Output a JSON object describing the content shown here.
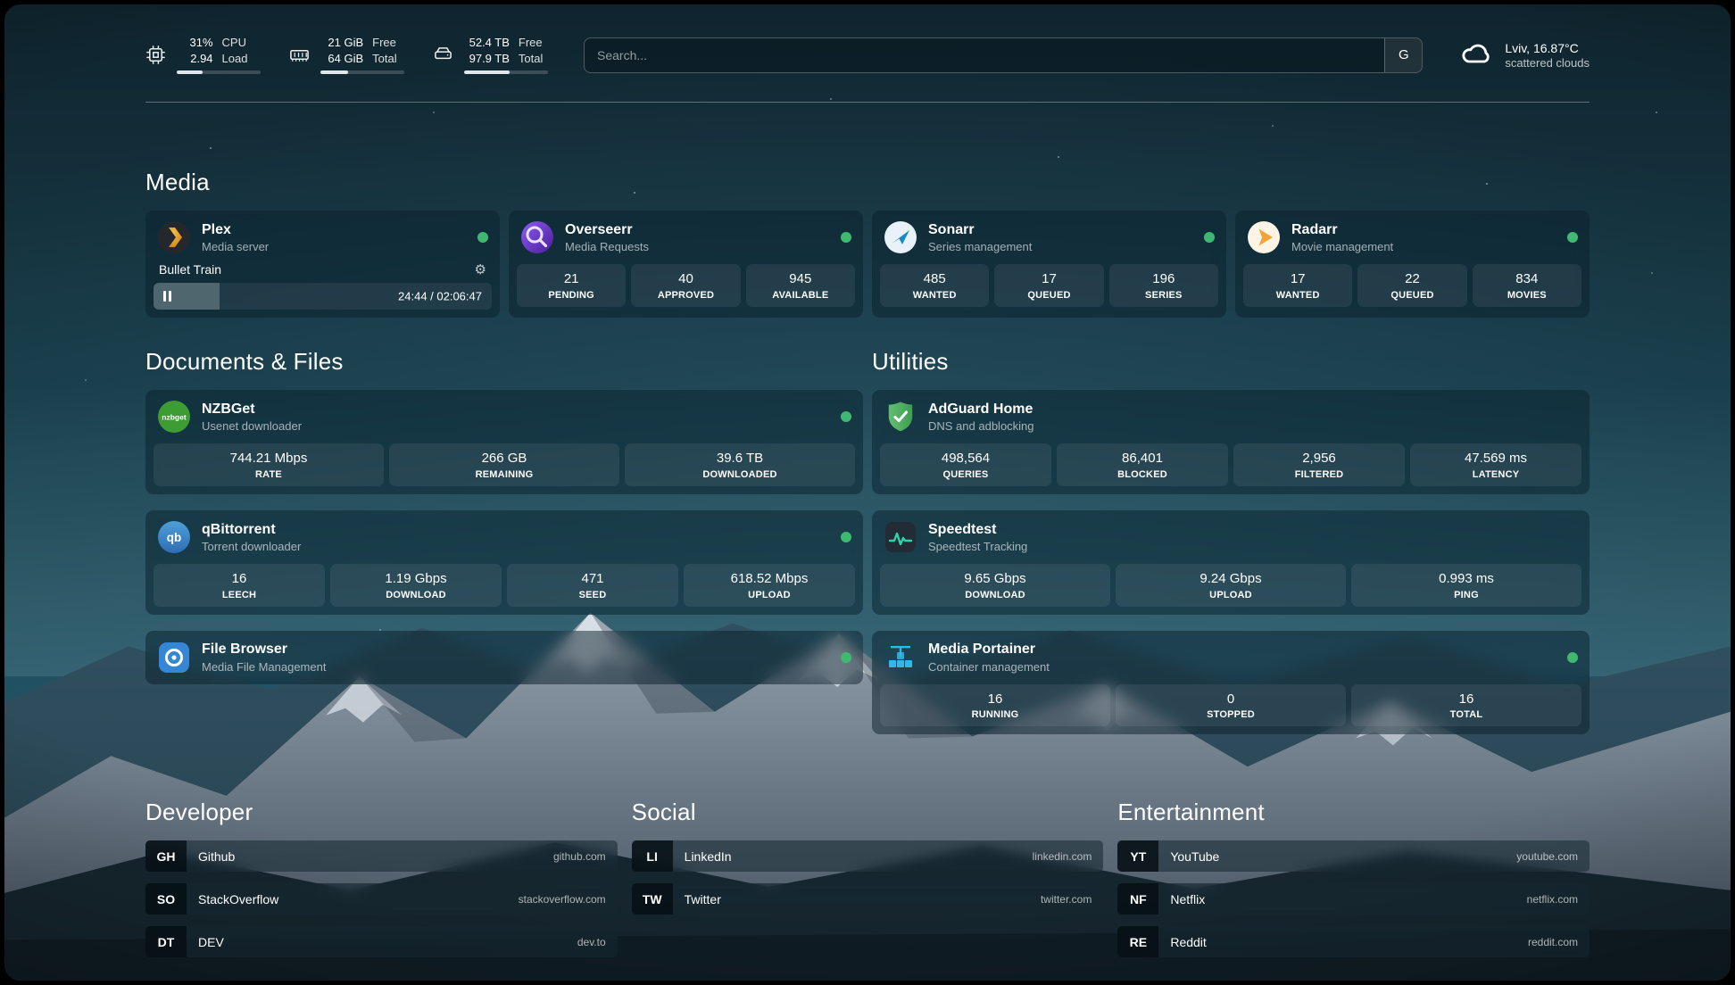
{
  "header": {
    "cpu": {
      "value_top": "31%",
      "value_bottom": "2.94",
      "label_top": "CPU",
      "label_bottom": "Load",
      "bar_percent": 31
    },
    "memory": {
      "value_top": "21 GiB",
      "value_bottom": "64 GiB",
      "label_top": "Free",
      "label_bottom": "Total",
      "bar_percent": 33
    },
    "disk": {
      "value_top": "52.4 TB",
      "value_bottom": "97.9 TB",
      "label_top": "Free",
      "label_bottom": "Total",
      "bar_percent": 54
    },
    "search": {
      "placeholder": "Search...",
      "provider_label": "G"
    },
    "weather": {
      "location": "Lviv, 16.87°C",
      "condition": "scattered clouds"
    }
  },
  "media": {
    "title": "Media",
    "plex": {
      "name": "Plex",
      "description": "Media server",
      "now_playing": "Bullet Train",
      "time": "24:44 / 02:06:47",
      "progress_percent": 19.5
    },
    "overseerr": {
      "name": "Overseerr",
      "description": "Media Requests",
      "stats": [
        {
          "value": "21",
          "label": "PENDING"
        },
        {
          "value": "40",
          "label": "APPROVED"
        },
        {
          "value": "945",
          "label": "AVAILABLE"
        }
      ]
    },
    "sonarr": {
      "name": "Sonarr",
      "description": "Series management",
      "stats": [
        {
          "value": "485",
          "label": "WANTED"
        },
        {
          "value": "17",
          "label": "QUEUED"
        },
        {
          "value": "196",
          "label": "SERIES"
        }
      ]
    },
    "radarr": {
      "name": "Radarr",
      "description": "Movie management",
      "stats": [
        {
          "value": "17",
          "label": "WANTED"
        },
        {
          "value": "22",
          "label": "QUEUED"
        },
        {
          "value": "834",
          "label": "MOVIES"
        }
      ]
    }
  },
  "documents": {
    "title": "Documents & Files",
    "nzbget": {
      "name": "NZBGet",
      "description": "Usenet downloader",
      "icon_text": "nzbget",
      "stats": [
        {
          "value": "744.21 Mbps",
          "label": "RATE"
        },
        {
          "value": "266 GB",
          "label": "REMAINING"
        },
        {
          "value": "39.6 TB",
          "label": "DOWNLOADED"
        }
      ]
    },
    "qbittorrent": {
      "name": "qBittorrent",
      "description": "Torrent downloader",
      "icon_text": "qb",
      "stats": [
        {
          "value": "16",
          "label": "LEECH"
        },
        {
          "value": "1.19 Gbps",
          "label": "DOWNLOAD"
        },
        {
          "value": "471",
          "label": "SEED"
        },
        {
          "value": "618.52 Mbps",
          "label": "UPLOAD"
        }
      ]
    },
    "filebrowser": {
      "name": "File Browser",
      "description": "Media File Management"
    }
  },
  "utilities": {
    "title": "Utilities",
    "adguard": {
      "name": "AdGuard Home",
      "description": "DNS and adblocking",
      "stats": [
        {
          "value": "498,564",
          "label": "QUERIES"
        },
        {
          "value": "86,401",
          "label": "BLOCKED"
        },
        {
          "value": "2,956",
          "label": "FILTERED"
        },
        {
          "value": "47.569 ms",
          "label": "LATENCY"
        }
      ]
    },
    "speedtest": {
      "name": "Speedtest",
      "description": "Speedtest Tracking",
      "stats": [
        {
          "value": "9.65 Gbps",
          "label": "DOWNLOAD"
        },
        {
          "value": "9.24 Gbps",
          "label": "UPLOAD"
        },
        {
          "value": "0.993 ms",
          "label": "PING"
        }
      ]
    },
    "portainer": {
      "name": "Media Portainer",
      "description": "Container management",
      "stats": [
        {
          "value": "16",
          "label": "RUNNING"
        },
        {
          "value": "0",
          "label": "STOPPED"
        },
        {
          "value": "16",
          "label": "TOTAL"
        }
      ]
    }
  },
  "bookmarks": {
    "developer": {
      "title": "Developer",
      "items": [
        {
          "abbr": "GH",
          "name": "Github",
          "url": "github.com"
        },
        {
          "abbr": "SO",
          "name": "StackOverflow",
          "url": "stackoverflow.com"
        },
        {
          "abbr": "DT",
          "name": "DEV",
          "url": "dev.to"
        }
      ]
    },
    "social": {
      "title": "Social",
      "items": [
        {
          "abbr": "LI",
          "name": "LinkedIn",
          "url": "linkedin.com"
        },
        {
          "abbr": "TW",
          "name": "Twitter",
          "url": "twitter.com"
        }
      ]
    },
    "entertainment": {
      "title": "Entertainment",
      "items": [
        {
          "abbr": "YT",
          "name": "YouTube",
          "url": "youtube.com"
        },
        {
          "abbr": "NF",
          "name": "Netflix",
          "url": "netflix.com"
        },
        {
          "abbr": "RE",
          "name": "Reddit",
          "url": "reddit.com"
        }
      ]
    }
  },
  "colors": {
    "status_online_green": "#41b871",
    "progress_bar_fill": "#dfe7ec"
  }
}
